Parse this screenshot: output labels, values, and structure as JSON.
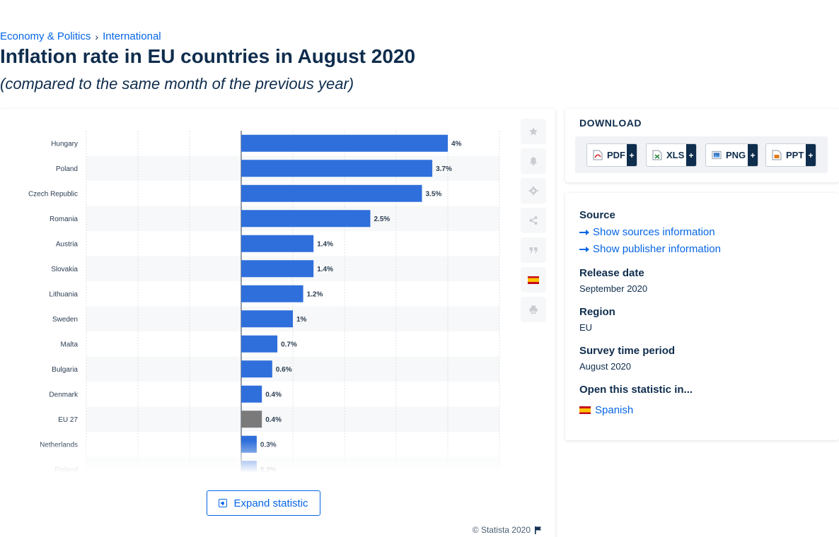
{
  "breadcrumb": {
    "item1": "Economy & Politics",
    "separator": "›",
    "item2": "International"
  },
  "page_title": "Inflation rate in EU countries in August 2020",
  "page_subtitle": "(compared to the same month of the previous year)",
  "chart_data": {
    "type": "bar",
    "orientation": "horizontal",
    "categories": [
      "Hungary",
      "Poland",
      "Czech Republic",
      "Romania",
      "Austria",
      "Slovakia",
      "Lithuania",
      "Sweden",
      "Malta",
      "Bulgaria",
      "Denmark",
      "EU 27",
      "Netherlands",
      "Finland"
    ],
    "values": [
      4,
      3.7,
      3.5,
      2.5,
      1.4,
      1.4,
      1.2,
      1,
      0.7,
      0.6,
      0.4,
      0.4,
      0.3,
      0.3
    ],
    "value_labels": [
      "4%",
      "3.7%",
      "3.5%",
      "2.5%",
      "1.4%",
      "1.4%",
      "1.2%",
      "1%",
      "0.7%",
      "0.6%",
      "0.4%",
      "0.4%",
      "0.3%",
      "0.3%"
    ],
    "highlight_category": "EU 27",
    "xlim": [
      -3,
      5
    ],
    "grid": true,
    "colors": {
      "bar": "#2f6fdb",
      "highlight": "#7a7a7a",
      "label": "#2b3d52"
    }
  },
  "expand_button": {
    "label": "Expand statistic"
  },
  "copyright": {
    "text": "© Statista 2020"
  },
  "side_tools": [
    {
      "name": "star-icon"
    },
    {
      "name": "bell-icon"
    },
    {
      "name": "gear-icon"
    },
    {
      "name": "share-icon"
    },
    {
      "name": "quote-icon"
    },
    {
      "name": "spanish-flag-icon"
    },
    {
      "name": "print-icon"
    }
  ],
  "download": {
    "title": "DOWNLOAD",
    "buttons": [
      {
        "label": "PDF",
        "plus": "+",
        "color": "#d4212b"
      },
      {
        "label": "XLS",
        "plus": "+",
        "color": "#2b8a3e"
      },
      {
        "label": "PNG",
        "plus": "+",
        "color": "#3b78c4"
      },
      {
        "label": "PPT",
        "plus": "+",
        "color": "#e07b1a"
      }
    ]
  },
  "info": {
    "source_heading": "Source",
    "show_sources": "Show sources information",
    "show_publisher": "Show publisher information",
    "release_heading": "Release date",
    "release_value": "September 2020",
    "region_heading": "Region",
    "region_value": "EU",
    "survey_heading": "Survey time period",
    "survey_value": "August 2020",
    "open_heading": "Open this statistic in...",
    "open_link": "Spanish"
  }
}
